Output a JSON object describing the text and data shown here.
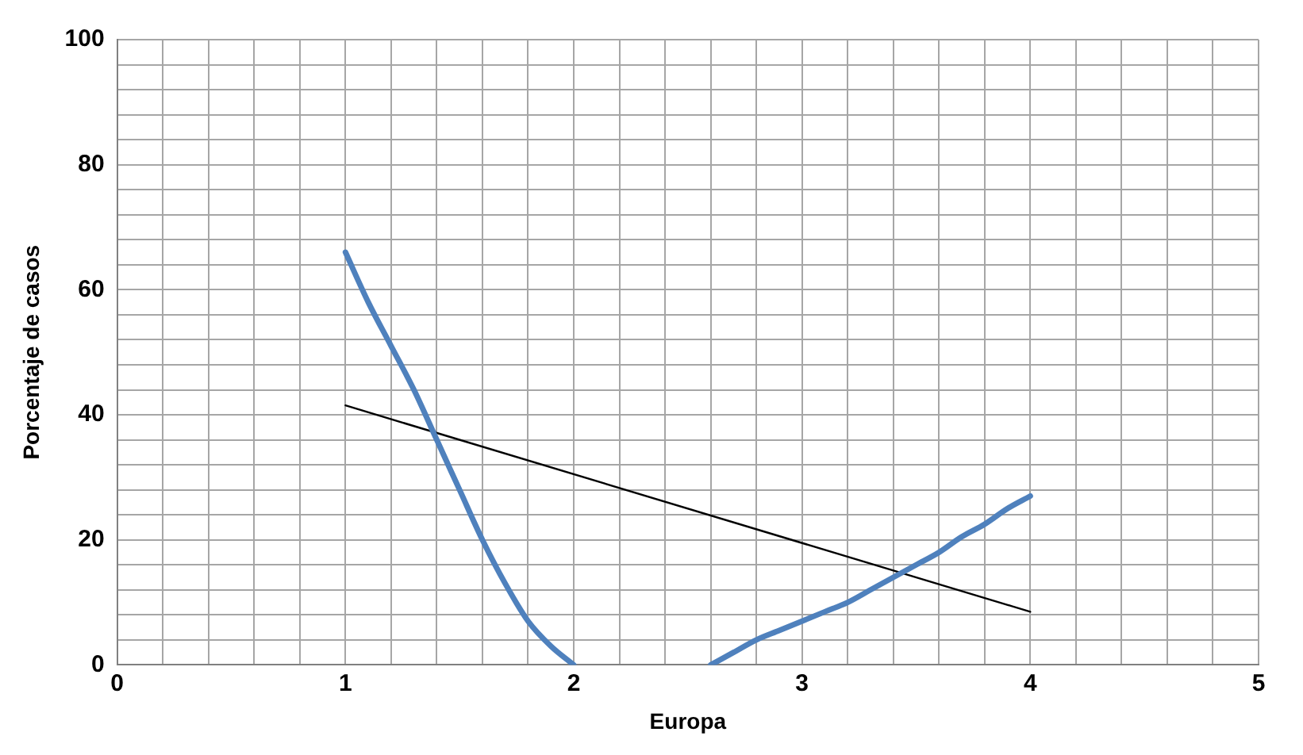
{
  "chart_data": {
    "type": "line",
    "xlabel": "Europa",
    "ylabel": "Porcentaje de casos",
    "xlim": [
      0,
      5
    ],
    "ylim": [
      0,
      100
    ],
    "xticks": [
      0,
      {
        "value": 0.2,
        "label": null
      },
      {
        "value": 0.4,
        "label": null
      },
      {
        "value": 0.6,
        "label": null
      },
      {
        "value": 0.8,
        "label": null
      },
      1,
      {
        "value": 1.2,
        "label": null
      },
      {
        "value": 1.4,
        "label": null
      },
      {
        "value": 1.6,
        "label": null
      },
      {
        "value": 1.8,
        "label": null
      },
      2,
      {
        "value": 2.2,
        "label": null
      },
      {
        "value": 2.4,
        "label": null
      },
      {
        "value": 2.6,
        "label": null
      },
      {
        "value": 2.8,
        "label": null
      },
      3,
      {
        "value": 3.2,
        "label": null
      },
      {
        "value": 3.4,
        "label": null
      },
      {
        "value": 3.6,
        "label": null
      },
      {
        "value": 3.8,
        "label": null
      },
      4,
      {
        "value": 4.2,
        "label": null
      },
      {
        "value": 4.4,
        "label": null
      },
      {
        "value": 4.6,
        "label": null
      },
      {
        "value": 4.8,
        "label": null
      },
      5
    ],
    "yticks": [
      0,
      {
        "value": 4,
        "label": null
      },
      {
        "value": 8,
        "label": null
      },
      {
        "value": 12,
        "label": null
      },
      {
        "value": 16,
        "label": null
      },
      20,
      {
        "value": 24,
        "label": null
      },
      {
        "value": 28,
        "label": null
      },
      {
        "value": 32,
        "label": null
      },
      {
        "value": 36,
        "label": null
      },
      40,
      {
        "value": 44,
        "label": null
      },
      {
        "value": 48,
        "label": null
      },
      {
        "value": 52,
        "label": null
      },
      {
        "value": 56,
        "label": null
      },
      60,
      {
        "value": 64,
        "label": null
      },
      {
        "value": 68,
        "label": null
      },
      {
        "value": 72,
        "label": null
      },
      {
        "value": 76,
        "label": null
      },
      80,
      {
        "value": 84,
        "label": null
      },
      {
        "value": 88,
        "label": null
      },
      {
        "value": 92,
        "label": null
      },
      {
        "value": 96,
        "label": null
      },
      100
    ],
    "grid": true,
    "legend": false,
    "marker": "none",
    "series": [
      {
        "color": "#4f81bd",
        "x": [
          1,
          1.1,
          1.2,
          1.3,
          1.4,
          1.5,
          1.6,
          1.7,
          1.8,
          1.9,
          2,
          2.3,
          2.6,
          2.7,
          2.8,
          2.9,
          3,
          3.1,
          3.2,
          3.3,
          3.4,
          3.5,
          3.6,
          3.7,
          3.8,
          3.9,
          4
        ],
        "values": [
          66,
          58,
          51,
          44,
          36,
          28,
          20,
          13,
          7,
          3,
          0,
          null,
          0,
          2,
          4,
          5.5,
          7,
          8.5,
          10,
          12,
          14,
          16,
          18,
          20.5,
          22.5,
          25,
          27
        ]
      },
      {
        "color": "#000000",
        "x": [
          1,
          4
        ],
        "values": [
          41.5,
          8.5
        ]
      }
    ]
  }
}
